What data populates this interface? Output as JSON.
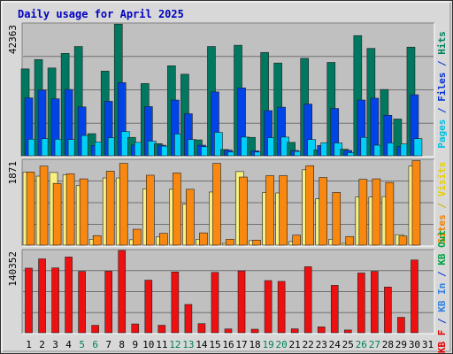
{
  "chart_data": {
    "type": "bar",
    "title": "Daily usage for April 2025",
    "categories": [
      "1",
      "2",
      "3",
      "4",
      "5",
      "6",
      "7",
      "8",
      "9",
      "10",
      "11",
      "12",
      "13",
      "14",
      "15",
      "16",
      "17",
      "18",
      "19",
      "20",
      "21",
      "22",
      "23",
      "24",
      "25",
      "26",
      "27",
      "28",
      "29",
      "30",
      "31"
    ],
    "weekend_days": [
      "5",
      "6",
      "12",
      "13",
      "19",
      "20",
      "26",
      "27"
    ],
    "panels": [
      {
        "name": "pages-files-hits",
        "max_label": "42363",
        "max": 42363,
        "axis_labels": [
          {
            "text": "Pages",
            "color": "#00c0e0"
          },
          {
            "text": " / ",
            "color": "#0030d0"
          },
          {
            "text": "Files",
            "color": "#0030d0"
          },
          {
            "text": " / ",
            "color": "#0030d0"
          },
          {
            "text": "Hits",
            "color": "#008060"
          }
        ],
        "series": [
          {
            "name": "Hits",
            "color": "#007860",
            "values": [
              27900,
              30900,
              28200,
              32900,
              35100,
              7100,
              27200,
              42300,
              5900,
              23200,
              3900,
              28900,
              26200,
              5100,
              35100,
              2000,
              35500,
              5900,
              33200,
              29800,
              4300,
              31300,
              1900,
              30000,
              2100,
              38600,
              34500,
              21300,
              11800,
              34900,
              null
            ]
          },
          {
            "name": "Files",
            "color": "#0044e8",
            "values": [
              18600,
              21100,
              18300,
              21300,
              15700,
              3300,
              17500,
              23500,
              3500,
              15800,
              3400,
              17900,
              13500,
              3400,
              20500,
              1800,
              21800,
              1600,
              14500,
              15600,
              1700,
              16600,
              3300,
              15200,
              1700,
              17900,
              18500,
              13000,
              3000,
              19600,
              null
            ]
          },
          {
            "name": "Pages",
            "color": "#00d0f8",
            "values": [
              5300,
              5500,
              5300,
              5200,
              6500,
              4400,
              5800,
              7800,
              4300,
              4700,
              3100,
              7000,
              5200,
              2900,
              7500,
              1200,
              6000,
              1200,
              5800,
              6000,
              1400,
              5200,
              4200,
              4100,
              1000,
              5900,
              3400,
              4100,
              3800,
              5500,
              null
            ]
          }
        ]
      },
      {
        "name": "visits-sites",
        "max_label": "1871",
        "max": 1871,
        "axis_labels": [
          {
            "text": "Sites",
            "color": "#f08000"
          },
          {
            "text": " / ",
            "color": "#d0b000"
          },
          {
            "text": "Visits",
            "color": "#e8d000"
          }
        ],
        "series": [
          {
            "name": "Visits",
            "color": "#f8f080",
            "values": [
              1610,
              1520,
              1600,
              1550,
              1310,
              130,
              1480,
              1480,
              120,
              1240,
              180,
              1230,
              900,
              130,
              1170,
              40,
              1620,
              100,
              1160,
              1150,
              80,
              1660,
              1020,
              130,
              40,
              1060,
              1060,
              1070,
              230,
              1740,
              null
            ]
          },
          {
            "name": "Sites",
            "color": "#f88810",
            "values": [
              1610,
              1740,
              1360,
              1570,
              1460,
              210,
              1630,
              1800,
              350,
              1540,
              260,
              1590,
              1230,
              270,
              1800,
              130,
              1500,
              110,
              1530,
              1530,
              220,
              1750,
              1490,
              1160,
              190,
              1450,
              1460,
              1380,
              200,
              1860,
              null
            ]
          }
        ]
      },
      {
        "name": "kb-in-out",
        "max_label": "140352",
        "max": 140352,
        "axis_labels": [
          {
            "text": "KB F",
            "color": "#e00000"
          },
          {
            "text": " / ",
            "color": "#0030d0"
          },
          {
            "text": "KB In",
            "color": "#3080e0"
          },
          {
            "text": " / ",
            "color": "#0030d0"
          },
          {
            "text": "KB Out",
            "color": "#00a040"
          }
        ],
        "series": [
          {
            "name": "KB F",
            "color": "#ee1010",
            "values": [
              110200,
              126000,
              110600,
              129200,
              104600,
              12700,
              105000,
              140300,
              15000,
              89700,
              12800,
              103700,
              48300,
              15500,
              103000,
              6500,
              105500,
              6000,
              89000,
              87600,
              6700,
              112600,
              10000,
              80900,
              4700,
              101900,
              104600,
              78000,
              26300,
              124100,
              null
            ]
          }
        ]
      }
    ]
  }
}
